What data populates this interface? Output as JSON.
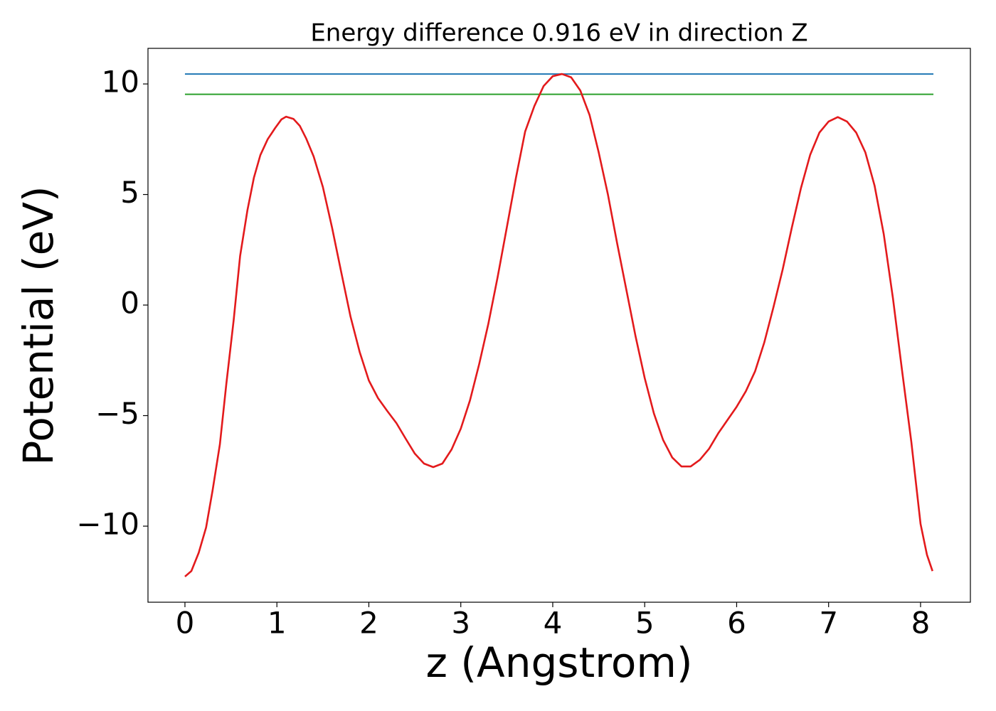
{
  "chart_data": {
    "type": "line",
    "title": "Energy difference 0.916 eV in direction Z",
    "xlabel": "z (Angstrom)",
    "ylabel": "Potential (eV)",
    "xlim": [
      -0.402,
      8.542
    ],
    "ylim": [
      -13.44,
      11.61
    ],
    "xticks": [
      0,
      1,
      2,
      3,
      4,
      5,
      6,
      7,
      8
    ],
    "yticks": [
      {
        "value": -10,
        "label": "−10"
      },
      {
        "value": -5,
        "label": "−5"
      },
      0,
      5,
      10
    ],
    "grid": false,
    "series": [
      {
        "color": "#1f77b4",
        "x": [
          0,
          8.14
        ],
        "values": [
          10.45,
          10.45
        ]
      },
      {
        "color": "#2ca02c",
        "x": [
          0,
          8.14
        ],
        "values": [
          9.53,
          9.53
        ]
      },
      {
        "color": "#e31a1c",
        "x": [
          0,
          0.07,
          0.15,
          0.23,
          0.3,
          0.38,
          0.45,
          0.53,
          0.6,
          0.68,
          0.75,
          0.82,
          0.9,
          0.98,
          1.05,
          1.1,
          1.18,
          1.25,
          1.32,
          1.4,
          1.5,
          1.6,
          1.7,
          1.8,
          1.9,
          2.0,
          2.1,
          2.2,
          2.3,
          2.4,
          2.5,
          2.6,
          2.7,
          2.8,
          2.9,
          3.0,
          3.1,
          3.2,
          3.3,
          3.4,
          3.5,
          3.6,
          3.7,
          3.8,
          3.9,
          4.0,
          4.1,
          4.2,
          4.3,
          4.4,
          4.5,
          4.6,
          4.7,
          4.8,
          4.9,
          5.0,
          5.1,
          5.2,
          5.3,
          5.4,
          5.5,
          5.6,
          5.7,
          5.8,
          5.9,
          6.0,
          6.1,
          6.2,
          6.3,
          6.4,
          6.5,
          6.6,
          6.7,
          6.8,
          6.9,
          7.0,
          7.1,
          7.2,
          7.3,
          7.4,
          7.5,
          7.6,
          7.7,
          7.8,
          7.9,
          8.0,
          8.07,
          8.13
        ],
        "values": [
          -12.28,
          -12.03,
          -11.2,
          -10.06,
          -8.4,
          -6.3,
          -3.57,
          -0.68,
          2.22,
          4.3,
          5.76,
          6.78,
          7.5,
          8.0,
          8.4,
          8.52,
          8.42,
          8.1,
          7.52,
          6.72,
          5.34,
          3.5,
          1.48,
          -0.51,
          -2.12,
          -3.41,
          -4.21,
          -4.79,
          -5.34,
          -6.04,
          -6.72,
          -7.17,
          -7.33,
          -7.17,
          -6.53,
          -5.59,
          -4.31,
          -2.67,
          -0.84,
          1.25,
          3.5,
          5.76,
          7.85,
          9.0,
          9.9,
          10.35,
          10.45,
          10.3,
          9.7,
          8.6,
          6.9,
          5.0,
          2.8,
          0.7,
          -1.4,
          -3.3,
          -4.9,
          -6.1,
          -6.9,
          -7.3,
          -7.3,
          -7.0,
          -6.5,
          -5.8,
          -5.2,
          -4.6,
          -3.9,
          -3.0,
          -1.7,
          -0.1,
          1.6,
          3.5,
          5.3,
          6.8,
          7.8,
          8.3,
          8.5,
          8.3,
          7.8,
          6.9,
          5.4,
          3.2,
          0.3,
          -3.0,
          -6.2,
          -9.9,
          -11.3,
          -12.03
        ]
      }
    ]
  }
}
